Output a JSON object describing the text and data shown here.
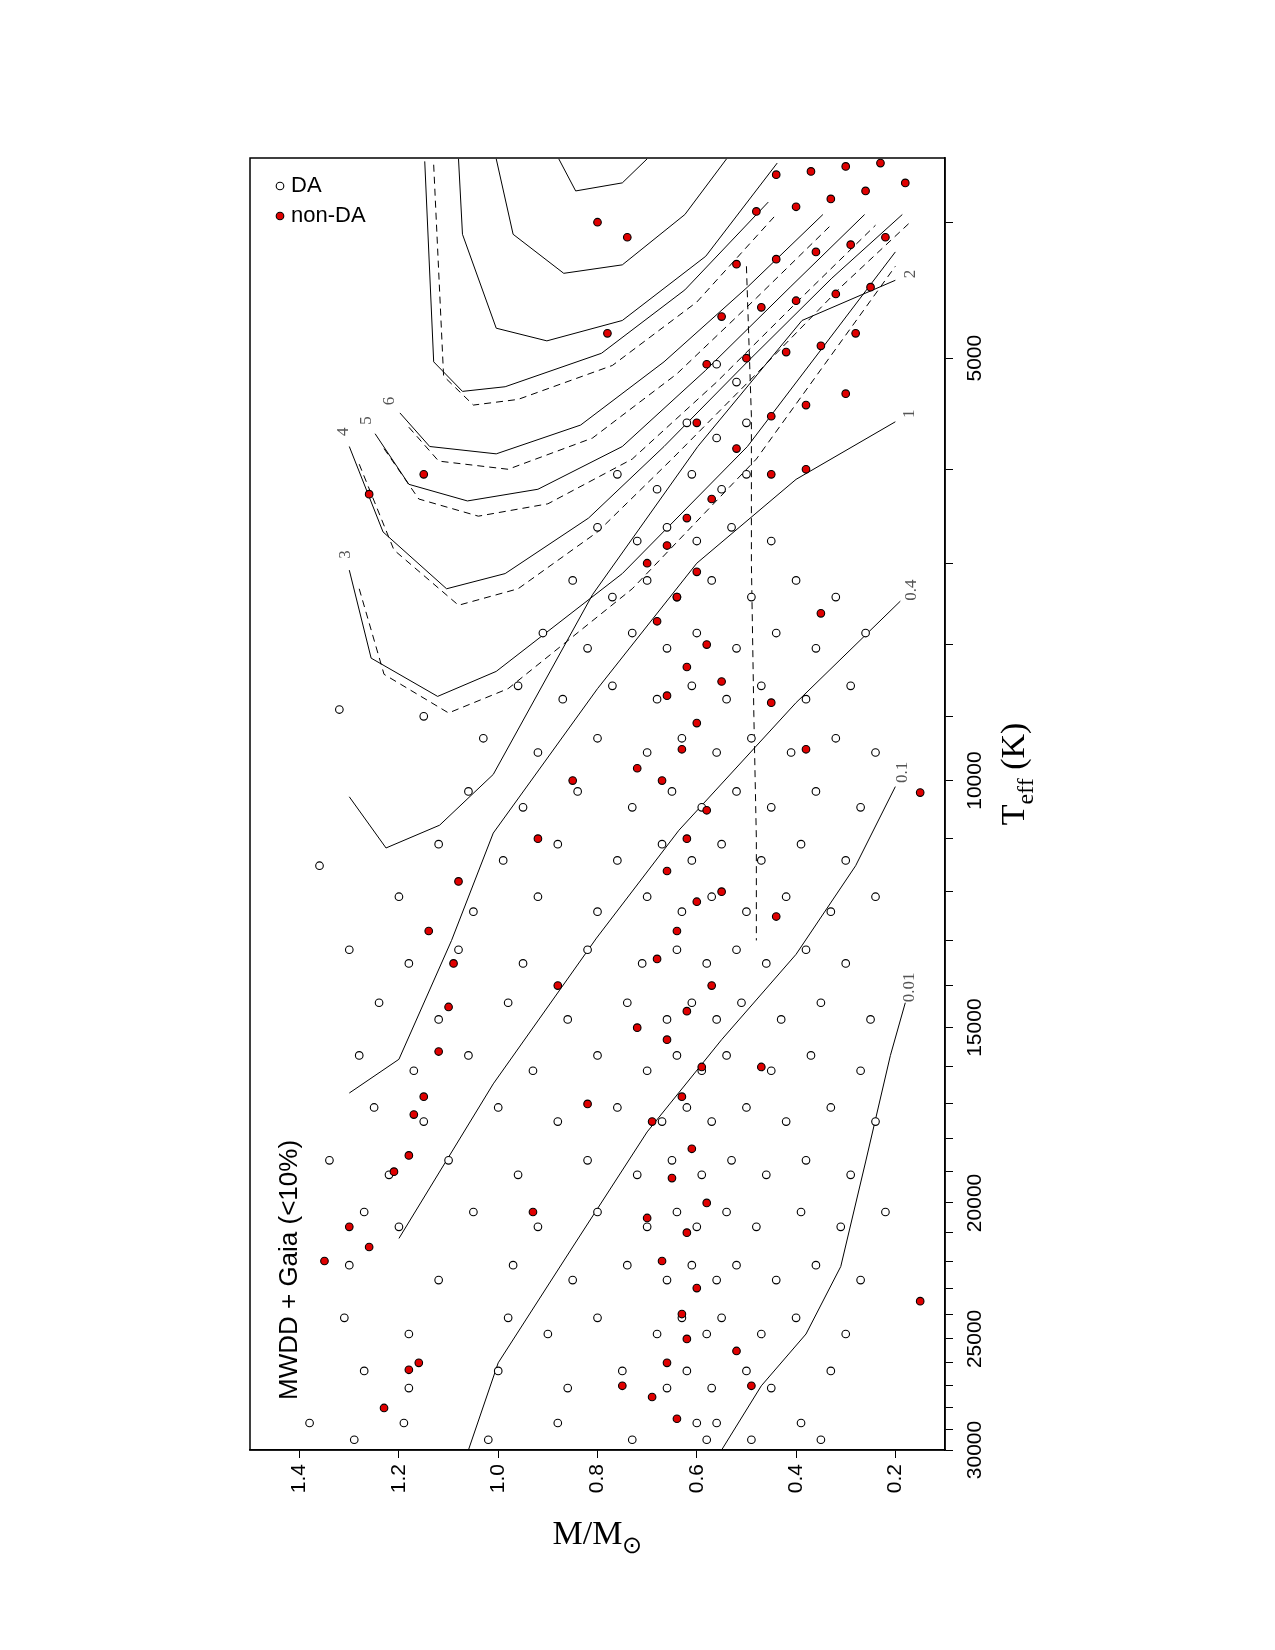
{
  "chart_data": {
    "type": "scatter",
    "title": "MWDD + Gaia (<10%)",
    "xlabel": "M/M$_{⊙}$",
    "ylabel": "T$_{eff}$ (K)",
    "log": "y",
    "legend": "top left",
    "xlim": [
      1.5,
      0.1
    ],
    "ylim": [
      30000,
      3600
    ],
    "yticks": [
      {
        "value": 4000,
        "label": null
      },
      5000,
      {
        "value": 6000,
        "label": null
      },
      {
        "value": 7000,
        "label": null
      },
      {
        "value": 8000,
        "label": null
      },
      {
        "value": 9000,
        "label": null
      },
      10000,
      {
        "value": 11000,
        "label": null
      },
      {
        "value": 12000,
        "label": null
      },
      {
        "value": 13000,
        "label": null
      },
      {
        "value": 14000,
        "label": null
      },
      15000,
      {
        "value": 16000,
        "label": null
      },
      {
        "value": 17000,
        "label": null
      },
      {
        "value": 18000,
        "label": null
      },
      {
        "value": 19000,
        "label": null
      },
      20000,
      {
        "value": 21000,
        "label": null
      },
      {
        "value": 22000,
        "label": null
      },
      {
        "value": 23000,
        "label": null
      },
      {
        "value": 24000,
        "label": null
      },
      25000,
      {
        "value": 26000,
        "label": null
      },
      {
        "value": 27000,
        "label": null
      },
      {
        "value": 28000,
        "label": null
      },
      {
        "value": 29000,
        "label": null
      },
      30000
    ],
    "xticks": [
      1.4,
      1.2,
      {
        "value": 1,
        "label": "1.0"
      },
      0.8,
      0.6,
      0.4,
      0.2
    ],
    "series": [
      {
        "name": "DA",
        "marker": "circle",
        "color": "#ffffff",
        "values": [
          28700,
          29500,
          28700,
          29500,
          28700,
          29500,
          28700,
          29500,
          28700,
          29500,
          28700,
          29500,
          26350,
          27100,
          26350,
          27100,
          26350,
          27100,
          26350,
          27100,
          26350,
          27100,
          26350,
          24150,
          24800,
          24150,
          24800,
          24150,
          24800,
          24150,
          24800,
          24150,
          24800,
          24150,
          24800,
          22150,
          22700,
          22150,
          22700,
          22150,
          22700,
          22150,
          22700,
          22150,
          22700,
          22150,
          22700,
          20300,
          20800,
          20300,
          20800,
          20300,
          20800,
          20300,
          20800,
          20300,
          20800,
          20300,
          20800,
          20300,
          18650,
          19100,
          18650,
          19100,
          18650,
          19100,
          18650,
          19100,
          18650,
          19100,
          18650,
          19100,
          17100,
          17500,
          17100,
          17500,
          17100,
          17500,
          17100,
          17500,
          17100,
          17500,
          17100,
          17500,
          15700,
          16100,
          15700,
          16100,
          15700,
          16100,
          15700,
          16100,
          15700,
          16100,
          15700,
          16100,
          14400,
          14800,
          14400,
          14800,
          14400,
          14800,
          14400,
          14800,
          14400,
          14800,
          14400,
          14800,
          13200,
          13500,
          13200,
          13500,
          13200,
          13500,
          13200,
          13500,
          13200,
          13500,
          13200,
          13500,
          12100,
          12400,
          12100,
          12400,
          12100,
          12400,
          12100,
          12400,
          12100,
          12400,
          12100,
          11100,
          11400,
          11100,
          11400,
          11100,
          11400,
          11100,
          11400,
          11100,
          11400,
          10180,
          10450,
          10180,
          10450,
          10180,
          10450,
          10180,
          10450,
          10180,
          10450,
          9330,
          9550,
          9330,
          9550,
          9330,
          9550,
          9330,
          9550,
          9330,
          9550,
          8560,
          8750,
          8560,
          8750,
          8560,
          8750,
          8560,
          8750,
          8560,
          7850,
          8050,
          7850,
          8050,
          7850,
          8050,
          7850,
          8050,
          7850,
          7200,
          7400,
          7200,
          7400,
          7200,
          7400,
          7200,
          7400,
          6600,
          6750,
          6600,
          6750,
          6600,
          6750,
          6050,
          6200,
          6050,
          6200,
          6050,
          5560,
          5700,
          5560,
          5050,
          5200,
          8900,
          11500,
          9000
        ],
        "x": [
          1.38,
          1.29,
          1.19,
          1.02,
          0.88,
          0.73,
          0.6,
          0.58,
          0.56,
          0.49,
          0.39,
          0.35,
          1.27,
          1.18,
          1.0,
          0.86,
          0.75,
          0.66,
          0.62,
          0.57,
          0.5,
          0.45,
          0.33,
          1.31,
          1.18,
          0.98,
          0.9,
          0.8,
          0.68,
          0.63,
          0.58,
          0.55,
          0.47,
          0.4,
          0.3,
          1.3,
          1.12,
          0.97,
          0.85,
          0.74,
          0.66,
          0.61,
          0.56,
          0.52,
          0.44,
          0.36,
          0.27,
          1.27,
          1.2,
          1.05,
          0.92,
          0.8,
          0.7,
          0.64,
          0.6,
          0.54,
          0.48,
          0.39,
          0.31,
          0.22,
          1.34,
          1.22,
          1.1,
          0.96,
          0.82,
          0.72,
          0.65,
          0.59,
          0.53,
          0.46,
          0.38,
          0.29,
          1.25,
          1.15,
          1.0,
          0.88,
          0.76,
          0.67,
          0.62,
          0.57,
          0.5,
          0.42,
          0.33,
          0.24,
          1.28,
          1.17,
          1.06,
          0.93,
          0.8,
          0.7,
          0.64,
          0.59,
          0.54,
          0.45,
          0.37,
          0.27,
          1.24,
          1.12,
          0.98,
          0.86,
          0.74,
          0.66,
          0.61,
          0.56,
          0.51,
          0.43,
          0.35,
          0.25,
          1.3,
          1.18,
          1.08,
          0.95,
          0.82,
          0.71,
          0.64,
          0.58,
          0.52,
          0.46,
          0.38,
          0.3,
          1.2,
          1.05,
          0.92,
          0.8,
          0.7,
          0.63,
          0.57,
          0.5,
          0.42,
          0.33,
          0.24,
          1.12,
          0.99,
          0.88,
          0.76,
          0.67,
          0.61,
          0.55,
          0.47,
          0.39,
          0.3,
          1.06,
          0.95,
          0.84,
          0.73,
          0.65,
          0.59,
          0.52,
          0.45,
          0.36,
          0.27,
          1.03,
          0.92,
          0.8,
          0.7,
          0.63,
          0.56,
          0.49,
          0.41,
          0.32,
          0.24,
          0.96,
          0.87,
          0.77,
          0.68,
          0.61,
          0.54,
          0.47,
          0.38,
          0.29,
          0.91,
          0.82,
          0.73,
          0.66,
          0.6,
          0.52,
          0.44,
          0.36,
          0.26,
          0.85,
          0.77,
          0.7,
          0.64,
          0.57,
          0.49,
          0.4,
          0.32,
          0.8,
          0.72,
          0.66,
          0.6,
          0.53,
          0.45,
          0.76,
          0.68,
          0.61,
          0.55,
          0.5,
          0.62,
          0.56,
          0.5,
          0.56,
          0.52,
          1.32,
          1.36,
          1.15
        ]
      },
      {
        "name": "non-DA",
        "marker": "circle",
        "color": "#e00000",
        "values": [
          28000,
          26300,
          26000,
          27000,
          27500,
          28500,
          25500,
          27000,
          26000,
          25000,
          22000,
          21500,
          20800,
          19000,
          18500,
          17300,
          16800,
          15600,
          14500,
          13500,
          12800,
          11800,
          24000,
          23000,
          22000,
          21000,
          20000,
          19200,
          18300,
          17500,
          16800,
          16000,
          15300,
          14600,
          14000,
          13400,
          12800,
          12200,
          11600,
          11000,
          10500,
          10000,
          9500,
          9100,
          8700,
          8300,
          8000,
          7700,
          7400,
          7100,
          6800,
          6500,
          6300,
          20500,
          15000,
          12000,
          9800,
          8500,
          7000,
          20300,
          17000,
          14000,
          11000,
          10000,
          8800,
          12500,
          16000,
          9500,
          7600,
          23500,
          10200,
          6050,
          6000,
          5800,
          5560,
          5500,
          5400,
          5300,
          5050,
          5000,
          4950,
          4900,
          4800,
          4670,
          4600,
          4550,
          4500,
          4450,
          4285,
          4250,
          4200,
          4150,
          4100,
          3930,
          3900,
          3850,
          3800,
          3750,
          3700,
          3680,
          3650,
          3630,
          6250,
          6050,
          4800,
          4100,
          4000
        ],
        "x": [
          1.23,
          1.18,
          1.16,
          0.75,
          0.69,
          0.64,
          0.52,
          0.49,
          0.66,
          0.62,
          1.35,
          1.26,
          1.3,
          1.21,
          1.18,
          1.17,
          1.15,
          1.12,
          1.1,
          1.09,
          1.14,
          1.08,
          0.63,
          0.6,
          0.67,
          0.62,
          0.58,
          0.65,
          0.61,
          0.69,
          0.63,
          0.59,
          0.66,
          0.62,
          0.57,
          0.68,
          0.64,
          0.6,
          0.66,
          0.62,
          0.58,
          0.67,
          0.63,
          0.6,
          0.66,
          0.62,
          0.58,
          0.68,
          0.64,
          0.6,
          0.66,
          0.62,
          0.57,
          0.7,
          0.72,
          0.55,
          0.72,
          0.55,
          0.7,
          0.93,
          0.82,
          0.88,
          0.92,
          0.85,
          0.45,
          0.44,
          0.47,
          0.38,
          0.35,
          0.15,
          0.15,
          0.45,
          0.38,
          0.52,
          0.6,
          0.45,
          0.38,
          0.3,
          0.58,
          0.5,
          0.42,
          0.35,
          0.28,
          0.55,
          0.47,
          0.4,
          0.32,
          0.25,
          0.52,
          0.44,
          0.36,
          0.29,
          0.22,
          0.48,
          0.4,
          0.33,
          0.26,
          0.18,
          0.44,
          0.37,
          0.3,
          0.23,
          1.26,
          1.15,
          0.78,
          0.74,
          0.8
        ]
      },
      {
        "name": "0.01",
        "type": "line",
        "color": "#000000",
        "line_style": "solid",
        "values": [
          14400,
          15700,
          18700,
          22200,
          24800,
          27000,
          30000
        ],
        "x": [
          0.18,
          0.21,
          0.26,
          0.31,
          0.38,
          0.47,
          0.55
        ]
      },
      {
        "name": "0.1",
        "type": "line",
        "color": "#000000",
        "line_style": "solid",
        "values": [
          10100,
          11500,
          13300,
          15300,
          17800,
          21500,
          26000,
          30000
        ],
        "x": [
          0.2,
          0.28,
          0.4,
          0.55,
          0.7,
          0.85,
          1.0,
          1.06
        ]
      },
      {
        "name": "0.4",
        "type": "line",
        "color": "#000000",
        "line_style": "solid",
        "values": [
          7450,
          8800,
          10850,
          12950,
          16450,
          21200
        ],
        "x": [
          0.19,
          0.4,
          0.636,
          0.802,
          1.01,
          1.2
        ]
      },
      {
        "name": "1",
        "type": "line",
        "color": "#000000",
        "line_style": "solid",
        "values": [
          5550,
          6100,
          7000,
          8600,
          10900,
          13000,
          15800,
          16700
        ],
        "x": [
          0.2,
          0.4,
          0.6,
          0.8,
          1.01,
          1.094,
          1.2,
          1.3
        ]
      },
      {
        "name": "2",
        "type": "line",
        "color": "#000000",
        "line_style": "solid",
        "values": [
          4400,
          4700,
          5780,
          7370,
          9900,
          10760,
          11170,
          10270
        ],
        "x": [
          0.2,
          0.388,
          0.598,
          0.81,
          1.01,
          1.118,
          1.226,
          1.3
        ]
      },
      {
        "name": "3",
        "type": "line",
        "color": "#000000",
        "line_style": "solid",
        "values": [
          7080,
          8180,
          8710,
          8360,
          7120,
          5780,
          4200
        ],
        "x": [
          1.3,
          1.256,
          1.122,
          1.004,
          0.75,
          0.498,
          0.2
        ]
      },
      {
        "name": "4",
        "type": "line",
        "color": "#000000",
        "line_style": "solid",
        "values": [
          5780,
          6650,
          7300,
          7120,
          6500,
          5780,
          5030,
          4385,
          3950
        ],
        "x": [
          1.3,
          1.232,
          1.104,
          0.986,
          0.818,
          0.666,
          0.498,
          0.328,
          0.186
        ]
      },
      {
        "name": "5",
        "type": "line",
        "color": "#000000",
        "line_style": "solid",
        "values": [
          5660,
          6150,
          6320,
          6200,
          5780,
          5100,
          4450,
          3950
        ],
        "x": [
          1.248,
          1.18,
          1.062,
          0.92,
          0.75,
          0.582,
          0.412,
          0.262
        ]
      },
      {
        "name": "6",
        "type": "line",
        "color": "#000000",
        "line_style": "solid",
        "values": [
          5470,
          5780,
          5850,
          5580,
          5030,
          4450,
          3950
        ],
        "x": [
          1.198,
          1.138,
          1.004,
          0.834,
          0.666,
          0.498,
          0.346
        ]
      },
      {
        "type": "line",
        "color": "#000000",
        "line_style": "solid",
        "values": [
          3620,
          5030,
          5280,
          5240,
          4960,
          4470,
          3870
        ],
        "x": [
          1.148,
          1.13,
          1.072,
          0.986,
          0.792,
          0.624,
          0.456
        ]
      },
      {
        "type": "line",
        "color": "#000000",
        "line_style": "solid",
        "values": [
          3605,
          4080,
          4760,
          4860,
          4700,
          4230,
          3630
        ],
        "x": [
          1.08,
          1.072,
          1.004,
          0.902,
          0.75,
          0.582,
          0.438
        ]
      },
      {
        "type": "line",
        "color": "#000000",
        "line_style": "solid",
        "values": [
          3605,
          4080,
          4350,
          4290,
          3950,
          3605
        ],
        "x": [
          1.004,
          0.97,
          0.868,
          0.75,
          0.624,
          0.54
        ]
      },
      {
        "type": "line",
        "color": "#000000",
        "line_style": "solid",
        "values": [
          3605,
          3800,
          3750,
          3605
        ],
        "x": [
          0.878,
          0.844,
          0.75,
          0.7
        ]
      },
      {
        "type": "line",
        "color": "#000000",
        "line_style": "dashed",
        "values": [
          7300,
          8400,
          8950,
          8600,
          7300,
          5900,
          4300
        ],
        "x": [
          1.28,
          1.23,
          1.1,
          0.98,
          0.73,
          0.48,
          0.2
        ]
      },
      {
        "type": "line",
        "color": "#000000",
        "line_style": "dashed",
        "values": [
          5950,
          6850,
          7500,
          7300,
          6650,
          5900,
          5130,
          4450,
          4000
        ],
        "x": [
          1.28,
          1.21,
          1.08,
          0.96,
          0.8,
          0.65,
          0.48,
          0.31,
          0.17
        ]
      },
      {
        "type": "line",
        "color": "#000000",
        "line_style": "dashed",
        "values": [
          5800,
          6300,
          6480,
          6350,
          5900,
          5200,
          4530,
          4020
        ],
        "x": [
          1.23,
          1.16,
          1.04,
          0.9,
          0.73,
          0.56,
          0.39,
          0.24
        ]
      },
      {
        "type": "line",
        "color": "#000000",
        "line_style": "dashed",
        "values": [
          5600,
          5920,
          6000,
          5700,
          5130,
          4530,
          4020
        ],
        "x": [
          1.18,
          1.12,
          0.98,
          0.81,
          0.64,
          0.48,
          0.33
        ]
      },
      {
        "type": "line",
        "color": "#000000",
        "line_style": "dashed",
        "values": [
          3640,
          5150,
          5400,
          5350,
          5060,
          4560,
          3950
        ],
        "x": [
          1.13,
          1.11,
          1.05,
          0.96,
          0.77,
          0.6,
          0.44
        ]
      },
      {
        "type": "line",
        "color": "#000000",
        "line_style": "dashed",
        "values": [
          4300,
          5500,
          7000,
          9000,
          11000,
          13000
        ],
        "x": [
          0.5,
          0.49,
          0.49,
          0.485,
          0.48,
          0.48
        ]
      }
    ]
  }
}
